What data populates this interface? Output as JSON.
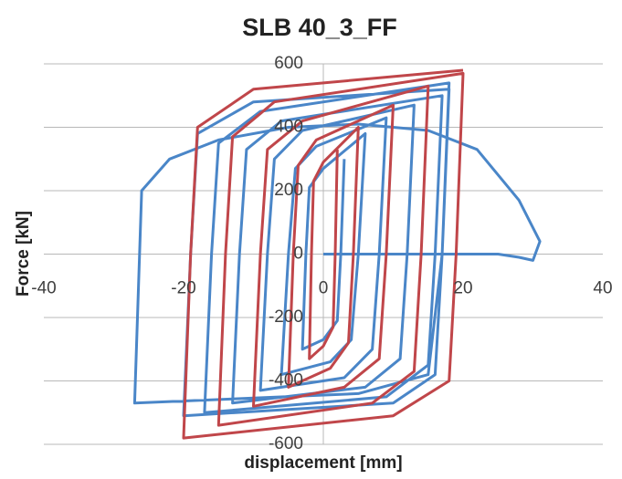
{
  "chart_data": {
    "type": "line",
    "title": "SLB 40_3_FF",
    "x_label": "displacement [mm]",
    "y_label": "Force [kN]",
    "xlim": [
      -40,
      40
    ],
    "ylim": [
      -600,
      600
    ],
    "xticks": [
      -40,
      -20,
      0,
      20,
      40
    ],
    "yticks": [
      -600,
      -400,
      -200,
      0,
      200,
      400,
      600
    ],
    "grid": true,
    "series": [
      {
        "color": "#4a86c8",
        "x": [
          3,
          2.5,
          2,
          0,
          -3,
          -2.5,
          -2,
          0,
          6,
          5,
          4,
          1,
          -6,
          -5,
          -4,
          -1,
          9,
          8,
          7,
          3,
          -9,
          -8,
          -7,
          -3,
          13,
          12,
          11,
          6,
          -13,
          -12,
          -11,
          -6,
          17,
          16,
          15,
          9,
          -17,
          -16,
          -15,
          -9,
          18,
          17,
          16,
          10,
          -20,
          -19,
          -18,
          -10,
          18,
          17,
          15,
          5,
          -27,
          -26,
          -22,
          -15,
          -5,
          5,
          15,
          22,
          28,
          31,
          30,
          28,
          25,
          0
        ],
        "values": [
          300,
          0,
          -210,
          -270,
          -300,
          0,
          210,
          270,
          380,
          0,
          -270,
          -340,
          -380,
          0,
          270,
          340,
          430,
          0,
          -300,
          -390,
          -430,
          0,
          300,
          390,
          470,
          0,
          -330,
          -420,
          -470,
          0,
          330,
          420,
          500,
          0,
          -350,
          -450,
          -500,
          0,
          350,
          450,
          540,
          0,
          -380,
          -470,
          -510,
          0,
          380,
          480,
          520,
          0,
          -380,
          -440,
          -470,
          200,
          300,
          360,
          400,
          410,
          390,
          330,
          170,
          40,
          -20,
          -10,
          0,
          0
        ]
      },
      {
        "color": "#c0464a",
        "x": [
          2,
          1.7,
          1.4,
          0,
          -2,
          -1.7,
          -1.4,
          0,
          5,
          4.3,
          3.6,
          1,
          -5,
          -4.3,
          -3.6,
          -1,
          10,
          9,
          8,
          3,
          -10,
          -9,
          -8,
          -3,
          15,
          14,
          13,
          7,
          -15,
          -14,
          -13,
          -7,
          20,
          19,
          18,
          10,
          -20,
          -19,
          -18,
          -10,
          20
        ],
        "values": [
          330,
          0,
          -230,
          -290,
          -330,
          0,
          230,
          290,
          400,
          0,
          -280,
          -360,
          -420,
          0,
          280,
          360,
          470,
          0,
          -330,
          -420,
          -480,
          0,
          330,
          420,
          530,
          0,
          -370,
          -470,
          -540,
          0,
          370,
          480,
          570,
          0,
          -400,
          -510,
          -580,
          0,
          400,
          520,
          580
        ]
      }
    ]
  }
}
